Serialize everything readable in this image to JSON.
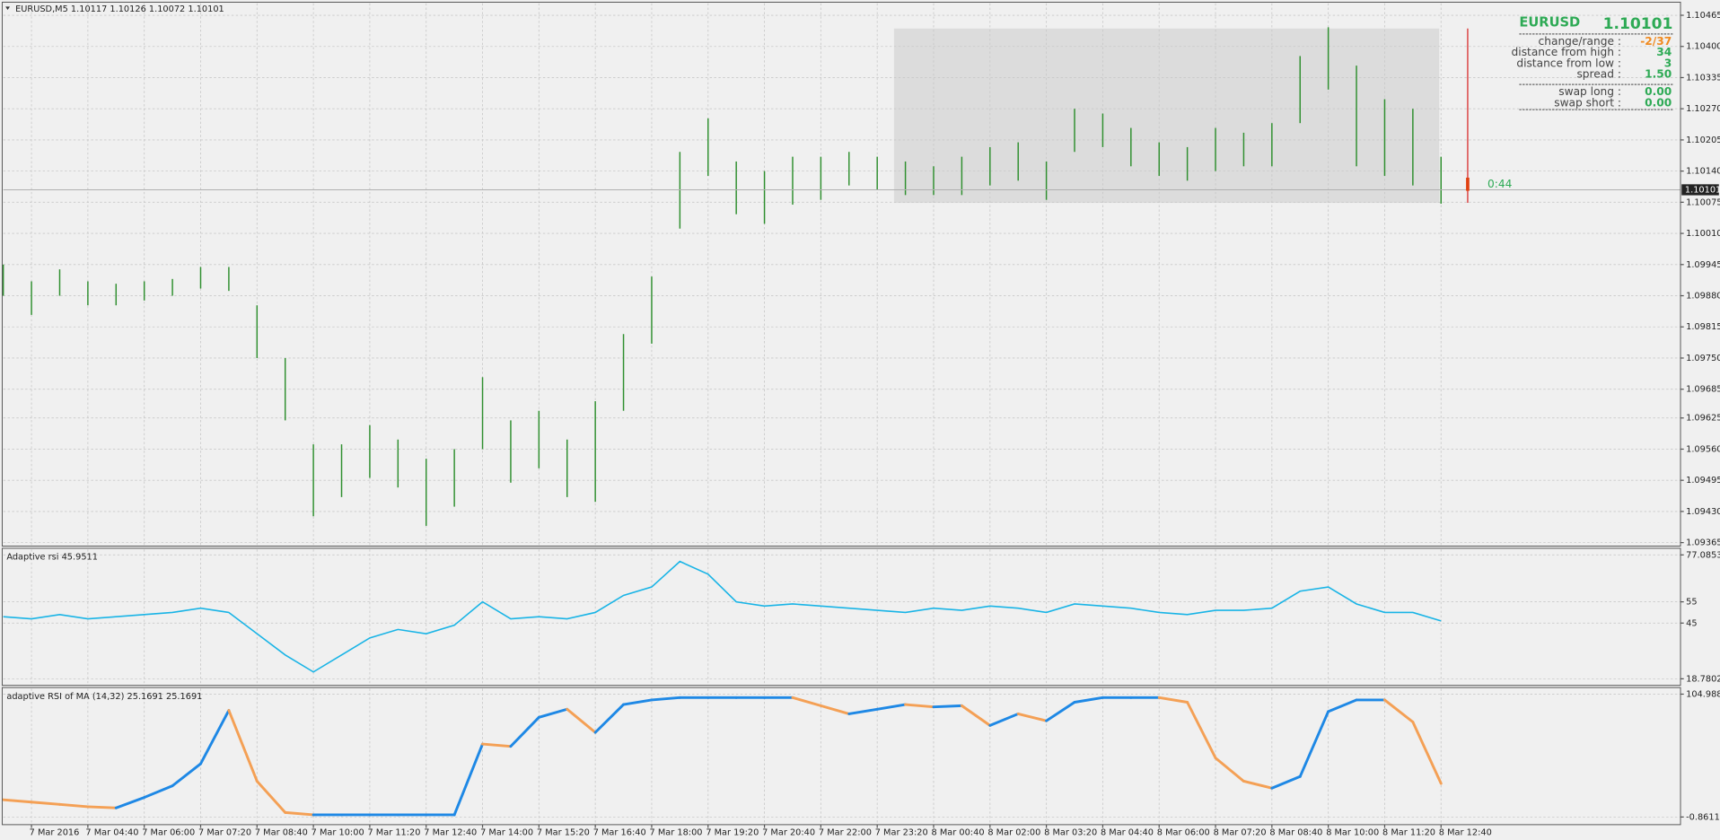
{
  "header": {
    "title": "EURUSD,M5  1.10117 1.10126 1.10072 1.10101"
  },
  "info_panel": {
    "symbol": "EURUSD",
    "price": 1.10101,
    "rows": [
      {
        "label": "change/range :",
        "value": "-2/37"
      },
      {
        "label": "distance from high :",
        "value": "34"
      },
      {
        "label": "distance from low :",
        "value": "3"
      },
      {
        "label": "spread :",
        "value": "1.50"
      },
      {
        "label": "swap long :",
        "value": "0.00"
      },
      {
        "label": "swap short :",
        "value": "0.00"
      }
    ],
    "timer": "0:44"
  },
  "chart_data": [
    {
      "type": "ohlc",
      "color": "#2f8f2f",
      "categories": [
        null,
        "7 Mar 2016",
        null,
        "7 Mar 04:40",
        null,
        "7 Mar 06:00",
        null,
        "7 Mar 07:20",
        null,
        "7 Mar 08:40",
        null,
        "7 Mar 10:00",
        null,
        "7 Mar 11:20",
        null,
        "7 Mar 12:40",
        null,
        "7 Mar 14:00",
        null,
        "7 Mar 15:20",
        null,
        "7 Mar 16:40",
        null,
        "7 Mar 18:00",
        null,
        "7 Mar 19:20",
        null,
        "7 Mar 20:40",
        null,
        "7 Mar 22:00",
        null,
        "7 Mar 23:20",
        null,
        "8 Mar 00:40",
        null,
        "8 Mar 02:00",
        null,
        "8 Mar 03:20",
        null,
        "8 Mar 04:40",
        null,
        "8 Mar 06:00",
        null,
        "8 Mar 07:20",
        null,
        "8 Mar 08:40",
        null,
        "8 Mar 10:00",
        null,
        "8 Mar 11:20",
        null,
        "8 Mar 12:40"
      ],
      "high": [
        1.09945,
        1.0991,
        1.09935,
        1.0991,
        1.09905,
        1.0991,
        1.09915,
        1.0994,
        1.0994,
        1.0986,
        1.0975,
        1.0957,
        1.0957,
        1.0961,
        1.0958,
        1.0954,
        1.0956,
        1.0971,
        1.0962,
        1.0964,
        1.0958,
        1.0966,
        1.098,
        1.0992,
        1.1018,
        1.1025,
        1.1016,
        1.1014,
        1.1017,
        1.1017,
        1.1018,
        1.1017,
        1.1016,
        1.1015,
        1.1017,
        1.1019,
        1.102,
        1.1016,
        1.1027,
        1.1026,
        1.1023,
        1.102,
        1.1019,
        1.1023,
        1.1022,
        1.1024,
        1.1038,
        1.1044,
        1.1036,
        1.1029,
        1.1027,
        1.1017
      ],
      "low": [
        1.0988,
        1.0984,
        1.0988,
        1.0986,
        1.0986,
        1.0987,
        1.0988,
        1.09895,
        1.0989,
        1.0975,
        1.0962,
        1.0942,
        1.0946,
        1.095,
        1.0948,
        1.094,
        1.0944,
        1.0956,
        1.0949,
        1.0952,
        1.0946,
        1.0945,
        1.0964,
        1.0978,
        1.1002,
        1.1013,
        1.1005,
        1.1003,
        1.1007,
        1.1008,
        1.1011,
        1.101,
        1.1009,
        1.1009,
        1.1009,
        1.1011,
        1.1012,
        1.1008,
        1.1018,
        1.1019,
        1.1015,
        1.1013,
        1.1012,
        1.1014,
        1.1015,
        1.1015,
        1.1024,
        1.1031,
        1.1015,
        1.1013,
        1.1011,
        1.10072
      ],
      "ylim": [
        1.0936,
        1.1049
      ],
      "yticks": [
        {
          "value": 1.10465,
          "label": "1.10465"
        },
        {
          "value": 1.104,
          "label": "1.10400"
        },
        {
          "value": 1.10335,
          "label": "1.10335"
        },
        {
          "value": 1.1027,
          "label": "1.10270"
        },
        {
          "value": 1.10205,
          "label": "1.10205"
        },
        {
          "value": 1.1014,
          "label": "1.10140"
        },
        {
          "value": 1.10075,
          "label": "1.10075"
        },
        {
          "value": 1.1001,
          "label": "1.10010"
        },
        {
          "value": 1.09945,
          "label": "1.09945"
        },
        {
          "value": 1.0988,
          "label": "1.09880"
        },
        {
          "value": 1.09815,
          "label": "1.09815"
        },
        {
          "value": 1.0975,
          "label": "1.09750"
        },
        {
          "value": 1.09685,
          "label": "1.09685"
        },
        {
          "value": 1.09625,
          "label": "1.09625"
        },
        {
          "value": 1.0956,
          "label": "1.09560"
        },
        {
          "value": 1.09495,
          "label": "1.09495"
        },
        {
          "value": 1.0943,
          "label": "1.09430"
        },
        {
          "value": 1.09365,
          "label": "1.09365"
        }
      ]
    },
    {
      "type": "line",
      "title": "Adaptive rsi 45.9511",
      "color": "#19b4e6",
      "values": [
        48,
        47,
        49,
        47,
        48,
        49,
        50,
        52,
        50,
        40,
        30,
        22,
        30,
        38,
        42,
        40,
        44,
        55,
        47,
        48,
        47,
        50,
        58,
        62,
        74,
        68,
        55,
        53,
        54,
        53,
        52,
        51,
        50,
        52,
        51,
        53,
        52,
        50,
        54,
        53,
        52,
        50,
        49,
        51,
        51,
        52,
        60,
        62,
        54,
        50,
        50,
        46
      ],
      "ylim": [
        16.2,
        79.67
      ],
      "yticks": [
        77.0853,
        55,
        45,
        18.7802
      ]
    },
    {
      "type": "colorline",
      "title": "adaptive RSI of MA (14,32) 25.1691 25.1691",
      "up_color": "#1e88e5",
      "down_color": "#f4a055",
      "values": [
        14,
        12,
        10,
        8,
        7,
        16,
        26,
        45,
        91,
        30,
        3,
        1,
        1,
        1,
        1,
        1,
        1,
        62,
        60,
        85,
        92,
        72,
        96,
        100,
        102,
        102,
        102,
        102,
        102,
        95,
        88,
        92,
        96,
        94,
        95,
        78,
        88,
        82,
        98,
        102,
        102,
        102,
        98,
        50,
        30,
        24,
        34,
        90,
        100,
        100,
        81,
        28
      ],
      "ylim": [
        -6.5,
        109.7
      ],
      "yticks": [
        104.9882,
        -0.8611
      ]
    }
  ]
}
